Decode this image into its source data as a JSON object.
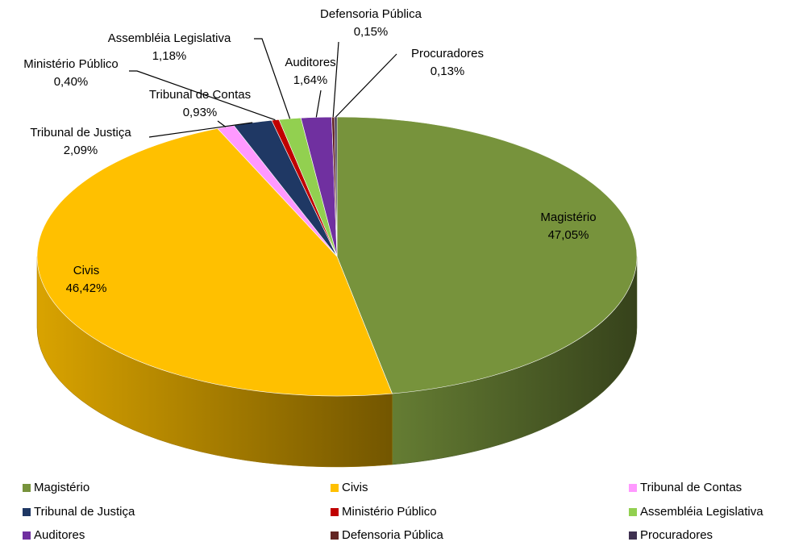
{
  "chart_data": {
    "type": "pie3d",
    "categories": [
      "Magistério",
      "Civis",
      "Tribunal de Contas",
      "Tribunal de Justiça",
      "Ministério Público",
      "Assembléia Legislativa",
      "Auditores",
      "Defensoria Pública",
      "Procuradores"
    ],
    "values": [
      47.05,
      46.42,
      0.93,
      2.09,
      0.4,
      1.18,
      1.64,
      0.15,
      0.13
    ],
    "value_labels": [
      "47,05%",
      "46,42%",
      "0,93%",
      "2,09%",
      "0,40%",
      "1,18%",
      "1,64%",
      "0,15%",
      "0,13%"
    ],
    "colors": [
      "#77933c",
      "#ffc000",
      "#ff99ff",
      "#1f3864",
      "#c00000",
      "#92d050",
      "#7030a0",
      "#632523",
      "#3f3151"
    ],
    "legend": "bottom"
  }
}
